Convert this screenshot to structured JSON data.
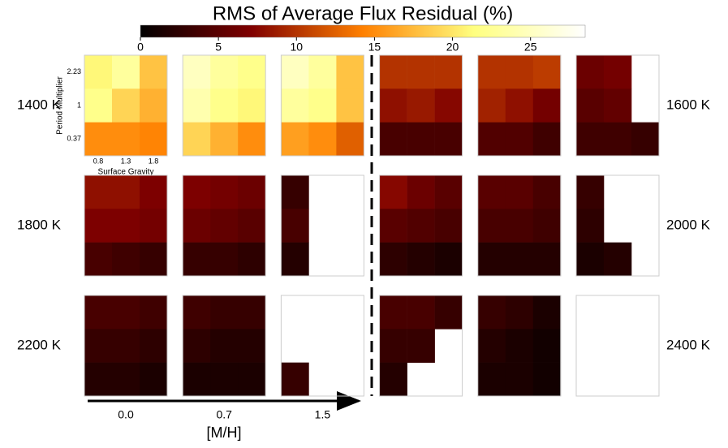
{
  "chart_data": {
    "type": "heatmap",
    "title": "RMS of Average Flux Residual (%)",
    "colormap": "afmhot",
    "clim": [
      0,
      28.5
    ],
    "cticks": [
      0,
      5,
      10,
      15,
      20,
      25
    ],
    "x_label": "Surface Gravity",
    "y_label": "Period Multiplier",
    "x_categories": [
      "0.8",
      "1.3",
      "1.8"
    ],
    "y_categories": [
      "2.23",
      "1",
      "0.37"
    ],
    "metallicity_label": "[M/H]",
    "metallicities": [
      "0.0",
      "0.7",
      "1.5"
    ],
    "groups": [
      {
        "label": "1400 K",
        "panels": [
          [
            [
              21,
              23,
              18
            ],
            [
              22,
              19,
              17
            ],
            [
              15,
              15,
              14.5
            ]
          ],
          [
            [
              25,
              23,
              22
            ],
            [
              24,
              22,
              21
            ],
            [
              19,
              17,
              15
            ]
          ],
          [
            [
              25,
              23,
              18
            ],
            [
              23,
              22,
              18
            ],
            [
              16,
              15,
              12.5
            ]
          ]
        ]
      },
      {
        "label": "1600 K",
        "panels": [
          [
            [
              10,
              10,
              10
            ],
            [
              8,
              8.5,
              7.5
            ],
            [
              4,
              4,
              4
            ]
          ],
          [
            [
              10,
              10,
              10.5
            ],
            [
              9,
              8,
              6.5
            ],
            [
              4.5,
              4.5,
              3.5
            ]
          ],
          [
            [
              6,
              6.5,
              null
            ],
            [
              5,
              5.5,
              null
            ],
            [
              3.5,
              3.5,
              3
            ]
          ]
        ]
      },
      {
        "label": "1800 K",
        "panels": [
          [
            [
              8,
              8,
              7
            ],
            [
              7,
              7,
              6.5
            ],
            [
              4,
              3.5,
              3
            ]
          ],
          [
            [
              7,
              6.5,
              6
            ],
            [
              6,
              5.5,
              5
            ],
            [
              3,
              3,
              2.5
            ]
          ],
          [
            [
              3,
              null,
              null
            ],
            [
              4,
              null,
              null
            ],
            [
              2,
              null,
              null
            ]
          ]
        ]
      },
      {
        "label": "2000 K",
        "panels": [
          [
            [
              7.5,
              6,
              5
            ],
            [
              5,
              4.5,
              4
            ],
            [
              2.5,
              2,
              1.5
            ]
          ],
          [
            [
              5,
              5,
              4
            ],
            [
              4,
              4,
              3.5
            ],
            [
              2,
              2,
              2
            ]
          ],
          [
            [
              3,
              null,
              null
            ],
            [
              2.5,
              null,
              null
            ],
            [
              1.5,
              2,
              null
            ]
          ]
        ]
      },
      {
        "label": "2200 K",
        "panels": [
          [
            [
              4,
              4,
              3.5
            ],
            [
              3,
              3,
              2.5
            ],
            [
              2,
              2,
              1.5
            ]
          ],
          [
            [
              3.5,
              3,
              3
            ],
            [
              2.5,
              2,
              2
            ],
            [
              1.5,
              1.5,
              1.5
            ]
          ],
          [
            [
              null,
              null,
              null
            ],
            [
              null,
              null,
              null
            ],
            [
              3,
              null,
              null
            ]
          ]
        ]
      },
      {
        "label": "2400 K",
        "panels": [
          [
            [
              4,
              4,
              3
            ],
            [
              3,
              3,
              null
            ],
            [
              2,
              null,
              null
            ]
          ],
          [
            [
              3,
              2.5,
              1.5
            ],
            [
              2,
              1.5,
              1
            ],
            [
              1.5,
              1.5,
              1
            ]
          ],
          [
            [
              null,
              null,
              null
            ],
            [
              null,
              null,
              null
            ],
            [
              null,
              null,
              null
            ]
          ]
        ]
      }
    ]
  }
}
